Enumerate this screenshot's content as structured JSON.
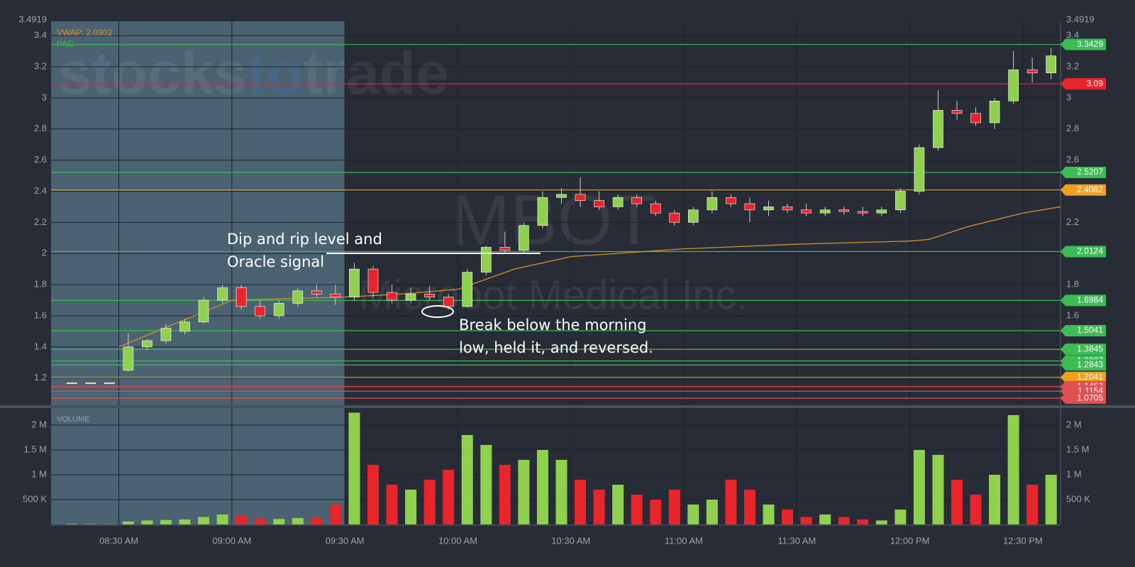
{
  "chart_data": {
    "type": "candlestick",
    "symbol": "MBOT",
    "company": "Microbot Medical Inc.",
    "watermark": [
      "stocks",
      "to",
      "trade"
    ],
    "vwap_label": "VWAP: 2.0302",
    "pac_label": "PAC",
    "volume_label": "VOLUME",
    "annotations": [
      "Dip and rip level and",
      "Oracle signal",
      "Break below the morning",
      "low, held it, and reversed."
    ],
    "x": [
      "08:15",
      "08:20",
      "08:25",
      "08:30",
      "08:35",
      "08:40",
      "08:45",
      "08:50",
      "08:55",
      "09:00",
      "09:05",
      "09:10",
      "09:15",
      "09:20",
      "09:25",
      "09:30",
      "09:35",
      "09:40",
      "09:45",
      "09:50",
      "09:55",
      "10:00",
      "10:05",
      "10:10",
      "10:15",
      "10:20",
      "10:25",
      "10:30",
      "10:35",
      "10:40",
      "10:45",
      "10:50",
      "10:55",
      "11:00",
      "11:05",
      "11:10",
      "11:15",
      "11:20",
      "11:25",
      "11:30",
      "11:35",
      "11:40",
      "11:45",
      "11:50",
      "11:55",
      "12:00",
      "12:05",
      "12:10",
      "12:15",
      "12:20",
      "12:25",
      "12:30",
      "12:35"
    ],
    "open": [
      1.17,
      1.17,
      1.17,
      1.25,
      1.4,
      1.44,
      1.5,
      1.56,
      1.7,
      1.78,
      1.66,
      1.6,
      1.68,
      1.76,
      1.74,
      1.72,
      1.9,
      1.75,
      1.7,
      1.74,
      1.72,
      1.66,
      1.88,
      2.04,
      2.02,
      2.18,
      2.36,
      2.38,
      2.34,
      2.3,
      2.36,
      2.32,
      2.26,
      2.2,
      2.28,
      2.36,
      2.32,
      2.28,
      2.3,
      2.28,
      2.26,
      2.28,
      2.27,
      2.26,
      2.28,
      2.4,
      2.68,
      2.92,
      2.9,
      2.84,
      2.98,
      3.18,
      3.16
    ],
    "high": [
      1.17,
      1.17,
      1.17,
      1.49,
      1.45,
      1.55,
      1.58,
      1.72,
      1.8,
      1.8,
      1.7,
      1.7,
      1.78,
      1.8,
      1.8,
      1.94,
      1.92,
      1.8,
      1.78,
      1.79,
      1.74,
      1.9,
      2.05,
      2.14,
      2.2,
      2.4,
      2.42,
      2.49,
      2.4,
      2.38,
      2.38,
      2.34,
      2.28,
      2.3,
      2.4,
      2.38,
      2.36,
      2.34,
      2.32,
      2.32,
      2.3,
      2.3,
      2.3,
      2.3,
      2.42,
      2.7,
      3.05,
      2.98,
      2.94,
      3.0,
      3.3,
      3.26,
      3.32
    ],
    "low": [
      1.17,
      1.17,
      1.17,
      1.24,
      1.38,
      1.42,
      1.48,
      1.55,
      1.68,
      1.64,
      1.58,
      1.58,
      1.66,
      1.72,
      1.67,
      1.7,
      1.72,
      1.68,
      1.68,
      1.7,
      1.64,
      1.65,
      1.86,
      2.0,
      2.0,
      2.16,
      2.32,
      2.3,
      2.28,
      2.28,
      2.3,
      2.24,
      2.18,
      2.18,
      2.26,
      2.3,
      2.2,
      2.24,
      2.26,
      2.24,
      2.24,
      2.25,
      2.24,
      2.24,
      2.26,
      2.38,
      2.66,
      2.86,
      2.82,
      2.8,
      2.96,
      3.1,
      3.12
    ],
    "close": [
      1.17,
      1.17,
      1.17,
      1.4,
      1.44,
      1.52,
      1.56,
      1.7,
      1.78,
      1.66,
      1.6,
      1.68,
      1.76,
      1.74,
      1.72,
      1.9,
      1.75,
      1.7,
      1.74,
      1.72,
      1.66,
      1.88,
      2.04,
      2.02,
      2.18,
      2.36,
      2.38,
      2.34,
      2.3,
      2.36,
      2.32,
      2.26,
      2.2,
      2.28,
      2.36,
      2.32,
      2.28,
      2.3,
      2.28,
      2.26,
      2.28,
      2.27,
      2.26,
      2.28,
      2.4,
      2.68,
      2.92,
      2.9,
      2.84,
      2.98,
      3.18,
      3.16,
      3.27
    ],
    "volume": [
      10000,
      8000,
      5000,
      60000,
      80000,
      90000,
      100000,
      150000,
      200000,
      180000,
      120000,
      110000,
      130000,
      140000,
      400000,
      2250000,
      1200000,
      800000,
      700000,
      900000,
      1100000,
      1800000,
      1600000,
      1200000,
      1300000,
      1500000,
      1300000,
      900000,
      700000,
      800000,
      600000,
      500000,
      700000,
      400000,
      500000,
      900000,
      700000,
      400000,
      300000,
      150000,
      200000,
      150000,
      100000,
      80000,
      300000,
      1500000,
      1400000,
      900000,
      600000,
      1000000,
      2200000,
      800000,
      1000000
    ],
    "up_color": "#8fd14f",
    "down_color": "#e8252a",
    "vwap": {
      "color": "#d4922a",
      "x": [
        "08:30",
        "09:00",
        "09:30",
        "09:45",
        "10:00",
        "10:15",
        "10:30",
        "11:00",
        "11:30",
        "12:00",
        "12:05",
        "12:15",
        "12:30",
        "12:40"
      ],
      "values": [
        1.4,
        1.7,
        1.72,
        1.74,
        1.77,
        1.9,
        1.98,
        2.03,
        2.06,
        2.08,
        2.09,
        2.17,
        2.26,
        2.3
      ]
    },
    "levels": [
      {
        "value": 3.3429,
        "color": "#3dbb55"
      },
      {
        "value": 3.09,
        "color": "#e8252a"
      },
      {
        "value": 2.5207,
        "color": "#3dbb55"
      },
      {
        "value": 2.4082,
        "color": "#f0a020"
      },
      {
        "value": 2.0124,
        "color": "#3dbb55"
      },
      {
        "value": 1.6984,
        "color": "#3dbb55"
      },
      {
        "value": 1.5041,
        "color": "#3dbb55"
      },
      {
        "value": 1.3845,
        "color": "#3dbb55"
      },
      {
        "value": 1.3097,
        "color": "#3dbb55"
      },
      {
        "value": 1.2843,
        "color": "#3dbb55"
      },
      {
        "value": 1.2041,
        "color": "#f0a020"
      },
      {
        "value": 1.1452,
        "color": "#e05050"
      },
      {
        "value": 1.1154,
        "color": "#e05050"
      },
      {
        "value": 1.0705,
        "color": "#e05050"
      }
    ],
    "premarket_end": "09:30",
    "xlim": [
      "08:12",
      "12:40"
    ],
    "xticks": [
      {
        "value": "08:30",
        "label": "08:30 AM"
      },
      {
        "value": "09:00",
        "label": "09:00 AM"
      },
      {
        "value": "09:30",
        "label": "09:30 AM"
      },
      {
        "value": "10:00",
        "label": "10:00 AM"
      },
      {
        "value": "10:30",
        "label": "10:30 AM"
      },
      {
        "value": "11:00",
        "label": "11:00 AM"
      },
      {
        "value": "11:30",
        "label": "11:30 AM"
      },
      {
        "value": "12:00",
        "label": "12:00 PM"
      },
      {
        "value": "12:30",
        "label": "12:30 PM"
      }
    ],
    "ylim": [
      1.03,
      3.4919
    ],
    "yticks": [
      1.2,
      1.4,
      1.6,
      1.8,
      2,
      2.2,
      2.4,
      2.6,
      2.8,
      3,
      3.2,
      3.4
    ],
    "volume_ylim": [
      0,
      2300000
    ],
    "volume_yticks": [
      {
        "value": 500000,
        "label": "500 K"
      },
      {
        "value": 1000000,
        "label": "1 M"
      },
      {
        "value": 1500000,
        "label": "1.5 M"
      },
      {
        "value": 2000000,
        "label": "2 M"
      }
    ],
    "grid": true
  }
}
